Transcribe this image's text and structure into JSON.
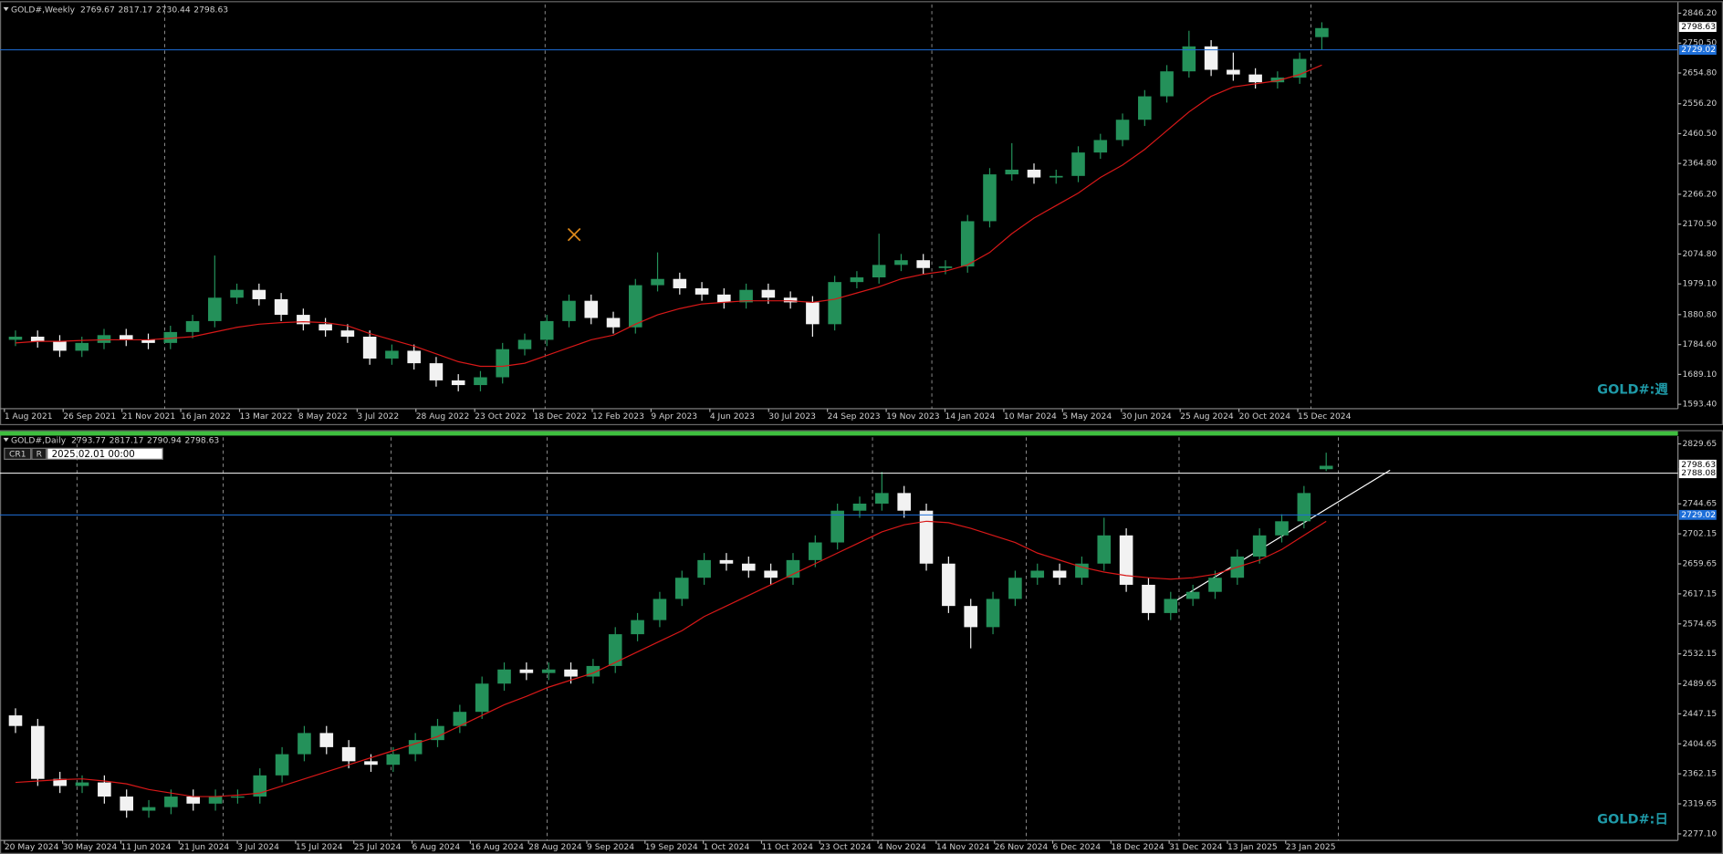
{
  "chart_data": [
    {
      "type": "candlestick",
      "title": "GOLD#,Weekly",
      "ohlc": [
        2769.67,
        2817.17,
        2730.44,
        2798.63
      ],
      "watermark": "GOLD#:週",
      "open": [
        1800,
        1810,
        1795,
        1765,
        1790,
        1815,
        1800,
        1790,
        1825,
        1860,
        1935,
        1960,
        1930,
        1880,
        1850,
        1830,
        1810,
        1740,
        1765,
        1725,
        1670,
        1655,
        1680,
        1770,
        1800,
        1860,
        1925,
        1870,
        1840,
        1975,
        1995,
        1965,
        1945,
        1920,
        1960,
        1935,
        1920,
        1850,
        1985,
        2000,
        2040,
        2055,
        2030,
        2035,
        2180,
        2330,
        2345,
        2320,
        2325,
        2400,
        2440,
        2505,
        2580,
        2660,
        2740,
        2665,
        2650,
        2625,
        2640,
        2769.67
      ],
      "high": [
        1830,
        1830,
        1815,
        1810,
        1835,
        1835,
        1820,
        1845,
        1880,
        2070,
        1980,
        1980,
        1950,
        1900,
        1870,
        1850,
        1830,
        1785,
        1785,
        1745,
        1690,
        1700,
        1790,
        1820,
        1880,
        1945,
        1945,
        1890,
        1995,
        2080,
        2015,
        1985,
        1965,
        1980,
        1980,
        1955,
        1940,
        2005,
        2020,
        2140,
        2075,
        2075,
        2055,
        2200,
        2350,
        2430,
        2365,
        2345,
        2420,
        2460,
        2525,
        2600,
        2680,
        2790,
        2760,
        2720,
        2670,
        2660,
        2720,
        2817.17
      ],
      "low": [
        1780,
        1775,
        1745,
        1745,
        1770,
        1780,
        1770,
        1770,
        1805,
        1840,
        1915,
        1910,
        1860,
        1830,
        1810,
        1790,
        1720,
        1720,
        1705,
        1650,
        1635,
        1635,
        1660,
        1750,
        1780,
        1840,
        1850,
        1820,
        1820,
        1955,
        1945,
        1925,
        1900,
        1900,
        1915,
        1900,
        1810,
        1830,
        1965,
        1980,
        2020,
        2010,
        2010,
        2015,
        2160,
        2310,
        2300,
        2300,
        2305,
        2380,
        2420,
        2485,
        2560,
        2640,
        2645,
        2630,
        2605,
        2605,
        2620,
        2730.44
      ],
      "close": [
        1810,
        1795,
        1765,
        1790,
        1815,
        1800,
        1790,
        1825,
        1860,
        1935,
        1960,
        1930,
        1880,
        1850,
        1830,
        1810,
        1740,
        1765,
        1725,
        1670,
        1655,
        1680,
        1770,
        1800,
        1860,
        1925,
        1870,
        1840,
        1975,
        1995,
        1965,
        1945,
        1920,
        1960,
        1935,
        1920,
        1850,
        1985,
        2000,
        2040,
        2055,
        2030,
        2035,
        2180,
        2330,
        2345,
        2320,
        2325,
        2400,
        2440,
        2505,
        2580,
        2660,
        2740,
        2665,
        2650,
        2625,
        2640,
        2700,
        2798.63
      ],
      "up_color": "#24915a",
      "down_color": "#f2f2f2",
      "ma": {
        "color": "#d81818",
        "values": [
          1790,
          1795,
          1795,
          1798,
          1800,
          1800,
          1800,
          1805,
          1810,
          1825,
          1840,
          1850,
          1855,
          1858,
          1855,
          1845,
          1820,
          1800,
          1780,
          1755,
          1730,
          1715,
          1715,
          1725,
          1750,
          1775,
          1800,
          1815,
          1850,
          1880,
          1900,
          1915,
          1920,
          1925,
          1925,
          1925,
          1920,
          1930,
          1950,
          1970,
          1995,
          2010,
          2020,
          2040,
          2080,
          2140,
          2190,
          2230,
          2270,
          2320,
          2360,
          2410,
          2470,
          2530,
          2580,
          2610,
          2620,
          2630,
          2650,
          2680
        ]
      },
      "ylim": [
        1579.3,
        2874.4
      ],
      "yticks": [
        {
          "value": 2846.2,
          "label": "2846.20"
        },
        {
          "value": 2750.5,
          "label": "2750.50"
        },
        {
          "value": 2654.8,
          "label": "2654.80"
        },
        {
          "value": 2556.2,
          "label": "2556.20"
        },
        {
          "value": 2460.5,
          "label": "2460.50"
        },
        {
          "value": 2364.8,
          "label": "2364.80"
        },
        {
          "value": 2266.2,
          "label": "2266.20"
        },
        {
          "value": 2170.5,
          "label": "2170.50"
        },
        {
          "value": 2074.8,
          "label": "2074.80"
        },
        {
          "value": 1979.1,
          "label": "1979.10"
        },
        {
          "value": 1880.8,
          "label": "1880.80"
        },
        {
          "value": 1784.6,
          "label": "1784.60"
        },
        {
          "value": 1689.1,
          "label": "1689.10"
        },
        {
          "value": 1593.4,
          "label": "1593.40"
        }
      ],
      "x_labels": [
        "1 Aug 2021",
        "26 Sep 2021",
        "21 Nov 2021",
        "16 Jan 2022",
        "13 Mar 2022",
        "8 May 2022",
        "3 Jul 2022",
        "28 Aug 2022",
        "23 Oct 2022",
        "18 Dec 2022",
        "12 Feb 2023",
        "9 Apr 2023",
        "4 Jun 2023",
        "30 Jul 2023",
        "24 Sep 2023",
        "19 Nov 2023",
        "14 Jan 2024",
        "10 Mar 2024",
        "5 May 2024",
        "30 Jun 2024",
        "25 Aug 2024",
        "20 Oct 2024",
        "15 Dec 2024"
      ],
      "last_price": 2798.63,
      "price_lines": [
        {
          "value": 2729.02,
          "color": "#1e6fd9"
        }
      ]
    },
    {
      "type": "candlestick",
      "title": "GOLD#,Daily",
      "ohlc": [
        2793.77,
        2817.17,
        2790.94,
        2798.63
      ],
      "watermark": "GOLD#:日",
      "open": [
        2445,
        2430,
        2355,
        2345,
        2350,
        2330,
        2310,
        2315,
        2330,
        2320,
        2330,
        2330,
        2360,
        2390,
        2420,
        2400,
        2380,
        2375,
        2390,
        2410,
        2430,
        2450,
        2490,
        2510,
        2505,
        2510,
        2500,
        2515,
        2560,
        2580,
        2610,
        2640,
        2665,
        2660,
        2650,
        2640,
        2665,
        2690,
        2735,
        2745,
        2760,
        2735,
        2660,
        2600,
        2570,
        2610,
        2640,
        2650,
        2640,
        2660,
        2700,
        2630,
        2590,
        2610,
        2620,
        2640,
        2670,
        2700,
        2720,
        2793.77
      ],
      "high": [
        2455,
        2440,
        2365,
        2360,
        2360,
        2340,
        2325,
        2340,
        2340,
        2340,
        2340,
        2370,
        2400,
        2430,
        2430,
        2410,
        2390,
        2400,
        2420,
        2440,
        2460,
        2500,
        2520,
        2520,
        2520,
        2520,
        2525,
        2570,
        2590,
        2620,
        2650,
        2675,
        2675,
        2670,
        2660,
        2675,
        2700,
        2745,
        2755,
        2790,
        2770,
        2745,
        2670,
        2610,
        2620,
        2650,
        2660,
        2660,
        2670,
        2725,
        2710,
        2640,
        2620,
        2630,
        2650,
        2680,
        2710,
        2730,
        2770,
        2817.17
      ],
      "low": [
        2420,
        2345,
        2335,
        2335,
        2320,
        2300,
        2300,
        2305,
        2310,
        2310,
        2320,
        2320,
        2350,
        2380,
        2390,
        2370,
        2365,
        2365,
        2380,
        2400,
        2420,
        2440,
        2480,
        2495,
        2495,
        2490,
        2490,
        2505,
        2550,
        2570,
        2600,
        2630,
        2650,
        2640,
        2630,
        2630,
        2655,
        2680,
        2725,
        2735,
        2725,
        2650,
        2590,
        2540,
        2560,
        2600,
        2630,
        2630,
        2630,
        2650,
        2620,
        2580,
        2580,
        2600,
        2610,
        2630,
        2660,
        2690,
        2710,
        2790.94
      ],
      "close": [
        2430,
        2355,
        2345,
        2350,
        2330,
        2310,
        2315,
        2330,
        2320,
        2330,
        2330,
        2360,
        2390,
        2420,
        2400,
        2380,
        2375,
        2390,
        2410,
        2430,
        2450,
        2490,
        2510,
        2505,
        2510,
        2500,
        2515,
        2560,
        2580,
        2610,
        2640,
        2665,
        2660,
        2650,
        2640,
        2665,
        2690,
        2735,
        2745,
        2760,
        2735,
        2660,
        2600,
        2570,
        2610,
        2640,
        2650,
        2640,
        2660,
        2700,
        2630,
        2590,
        2610,
        2620,
        2640,
        2670,
        2700,
        2720,
        2760,
        2798.63
      ],
      "up_color": "#24915a",
      "down_color": "#f2f2f2",
      "ma": {
        "color": "#d81818",
        "values": [
          2350,
          2352,
          2354,
          2355,
          2352,
          2348,
          2340,
          2335,
          2330,
          2330,
          2332,
          2335,
          2345,
          2355,
          2365,
          2375,
          2385,
          2395,
          2405,
          2415,
          2430,
          2445,
          2460,
          2472,
          2485,
          2495,
          2505,
          2520,
          2535,
          2550,
          2565,
          2585,
          2600,
          2615,
          2630,
          2645,
          2660,
          2675,
          2690,
          2705,
          2715,
          2720,
          2718,
          2710,
          2700,
          2690,
          2675,
          2665,
          2655,
          2648,
          2643,
          2640,
          2638,
          2640,
          2645,
          2655,
          2665,
          2680,
          2700,
          2720
        ]
      },
      "ylim": [
        2267.8,
        2839.0
      ],
      "yticks": [
        2829.65,
        2744.65,
        2702.15,
        2659.65,
        2617.15,
        2574.65,
        2532.15,
        2489.65,
        2447.15,
        2404.65,
        2362.15,
        2319.65,
        {
          "value": 2277.1,
          "label": "2277.10"
        }
      ],
      "x_labels": [
        "20 May 2024",
        "30 May 2024",
        "11 Jun 2024",
        "21 Jun 2024",
        "3 Jul 2024",
        "15 Jul 2024",
        "25 Jul 2024",
        "6 Aug 2024",
        "16 Aug 2024",
        "28 Aug 2024",
        "9 Sep 2024",
        "19 Sep 2024",
        "1 Oct 2024",
        "11 Oct 2024",
        "23 Oct 2024",
        "4 Nov 2024",
        "14 Nov 2024",
        "26 Nov 2024",
        "6 Dec 2024",
        "18 Dec 2024",
        "31 Dec 2024",
        "13 Jan 2025",
        "23 Jan 2025"
      ],
      "last_price": 2798.63,
      "price_lines": [
        {
          "value": 2788.08,
          "color": "#ffffff"
        },
        {
          "value": 2729.02,
          "color": "#1e6fd9"
        }
      ]
    }
  ],
  "toolbar": {
    "buttons": [
      "CR1",
      "R"
    ],
    "date": "2025.02.01 00:00"
  }
}
